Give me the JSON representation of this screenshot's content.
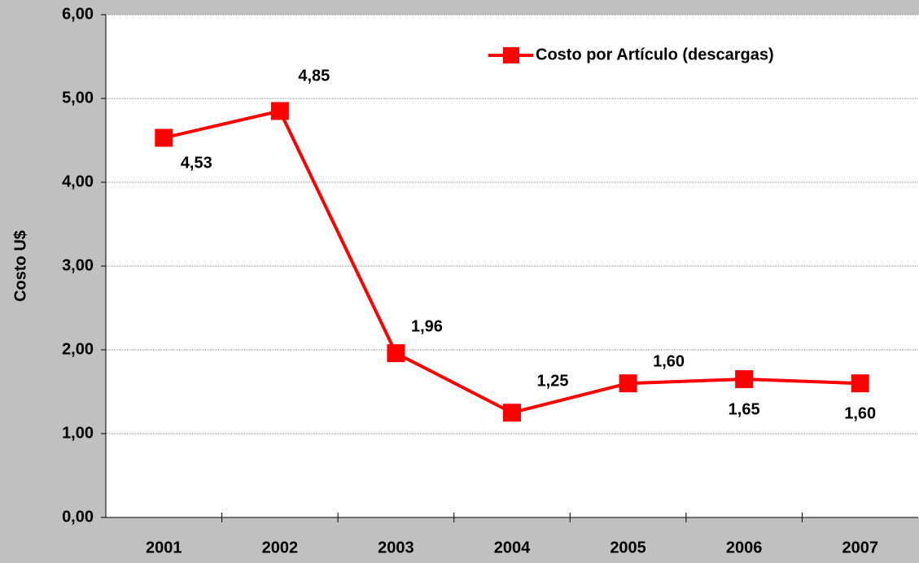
{
  "chart_data": {
    "type": "line",
    "y_label": "Costo U$",
    "categories": [
      "2001",
      "2002",
      "2003",
      "2004",
      "2005",
      "2006",
      "2007"
    ],
    "series": [
      {
        "name": "Costo por Artículo (descargas)",
        "color": "#ff0000",
        "values": [
          4.53,
          4.85,
          1.96,
          1.25,
          1.6,
          1.65,
          1.6
        ],
        "value_labels": [
          "4,53",
          "4,85",
          "1,96",
          "1,25",
          "1,60",
          "1,65",
          "1,60"
        ]
      }
    ],
    "ylim": [
      0,
      6
    ],
    "yticks": [
      {
        "value": 0,
        "label": "0,00"
      },
      {
        "value": 1,
        "label": "1,00"
      },
      {
        "value": 2,
        "label": "2,00"
      },
      {
        "value": 3,
        "label": "3,00"
      },
      {
        "value": 4,
        "label": "4,00"
      },
      {
        "value": 5,
        "label": "5,00"
      },
      {
        "value": 6,
        "label": "6,00"
      }
    ],
    "grid": true,
    "legend": "upper right"
  }
}
